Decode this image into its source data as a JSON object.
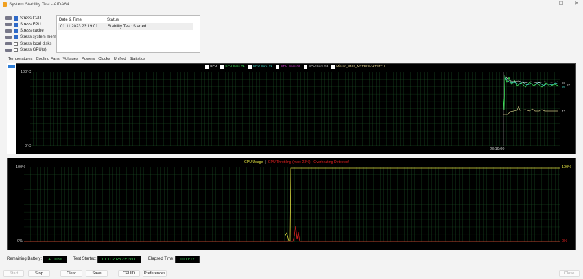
{
  "window": {
    "title": "System Stability Test - AIDA64",
    "minimize": "—",
    "maximize": "☐",
    "close": "✕"
  },
  "stress_options": [
    {
      "label": "Stress CPU",
      "checked": true,
      "icon": "cpu-icon"
    },
    {
      "label": "Stress FPU",
      "checked": true,
      "icon": "fpu-icon"
    },
    {
      "label": "Stress cache",
      "checked": true,
      "icon": "cache-icon"
    },
    {
      "label": "Stress system memory",
      "checked": true,
      "icon": "memory-icon"
    },
    {
      "label": "Stress local disks",
      "checked": false,
      "icon": "disk-icon"
    },
    {
      "label": "Stress GPU(s)",
      "checked": false,
      "icon": "gpu-icon"
    }
  ],
  "log": {
    "headers": [
      "Date & Time",
      "Status"
    ],
    "rows": [
      [
        "01.11.2023 23:19:01",
        "Stability Test: Started"
      ]
    ]
  },
  "tabs": [
    "Temperatures",
    "Cooling Fans",
    "Voltages",
    "Powers",
    "Clocks",
    "Unified",
    "Statistics"
  ],
  "temp_graph": {
    "legend": [
      {
        "label": "CPU",
        "color": "#ffffff"
      },
      {
        "label": "CPU Core #1",
        "color": "#3ee05a"
      },
      {
        "label": "CPU Core #2",
        "color": "#40d0c0"
      },
      {
        "label": "CPU Core #3",
        "color": "#d040d0"
      },
      {
        "label": "CPU Core #4",
        "color": "#cccccc"
      },
      {
        "label": "Micron_3400_MTFDKBA2T0TFH",
        "color": "#e0d090"
      }
    ],
    "y_max": "100°C",
    "y_min": "0°C",
    "time_label": "23:19:00",
    "readings": [
      "85",
      "80",
      "87",
      "47"
    ]
  },
  "cpu_graph": {
    "title_usage": "CPU Usage",
    "separator": "|",
    "title_throttle": "CPU Throttling (max: 23%) - Overheating Detected!",
    "left_max": "100%",
    "left_min": "0%",
    "right_max": "100%",
    "right_min": "0%",
    "usage_color": "#e0e040",
    "throttle_color": "#e02020"
  },
  "status": {
    "battery_label": "Remaining Battery:",
    "battery_value": "AC Line",
    "started_label": "Test Started:",
    "started_value": "01.11.2023 23:19:00",
    "elapsed_label": "Elapsed Time:",
    "elapsed_value": "00:11:12"
  },
  "buttons": {
    "start": "Start",
    "stop": "Stop",
    "clear": "Clear",
    "save": "Save",
    "cpuid": "CPUID",
    "preferences": "Preferences",
    "close": "Close"
  }
}
